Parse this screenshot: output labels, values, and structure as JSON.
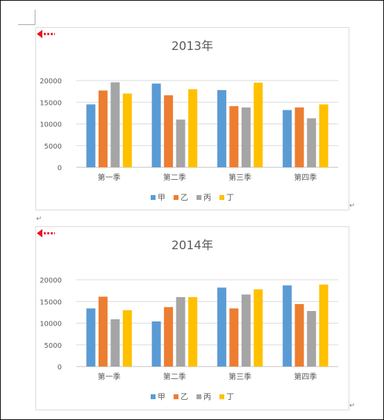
{
  "charts": [
    {
      "title": "2013年",
      "chart_data": {
        "type": "bar",
        "title": "2013年",
        "categories": [
          "第一季",
          "第二季",
          "第三季",
          "第四季"
        ],
        "ylim": [
          0,
          20000
        ],
        "yticks": [
          "0",
          "5000",
          "10000",
          "15000",
          "20000"
        ],
        "grid": true,
        "legend_position": "bottom",
        "series": [
          {
            "name": "甲",
            "color": "#5b9bd5",
            "values": [
              14500,
              19300,
              17800,
              13200
            ]
          },
          {
            "name": "乙",
            "color": "#ed7d31",
            "values": [
              17700,
              16600,
              14100,
              13800
            ]
          },
          {
            "name": "丙",
            "color": "#a5a5a5",
            "values": [
              19600,
              11000,
              13800,
              11300
            ]
          },
          {
            "name": "丁",
            "color": "#ffc000",
            "values": [
              17000,
              18000,
              19500,
              14500
            ]
          }
        ]
      }
    },
    {
      "title": "2014年",
      "chart_data": {
        "type": "bar",
        "title": "2014年",
        "categories": [
          "第一季",
          "第二季",
          "第三季",
          "第四季"
        ],
        "ylim": [
          0,
          20000
        ],
        "yticks": [
          "0",
          "5000",
          "10000",
          "15000",
          "20000"
        ],
        "grid": true,
        "legend_position": "bottom",
        "series": [
          {
            "name": "甲",
            "color": "#5b9bd5",
            "values": [
              13400,
              10400,
              18200,
              18700
            ]
          },
          {
            "name": "乙",
            "color": "#ed7d31",
            "values": [
              16100,
              13700,
              13400,
              14400
            ]
          },
          {
            "name": "丙",
            "color": "#a5a5a5",
            "values": [
              10900,
              16000,
              16600,
              12800
            ]
          },
          {
            "name": "丁",
            "color": "#ffc000",
            "values": [
              13000,
              16000,
              17800,
              18900
            ]
          }
        ]
      }
    }
  ],
  "page": {
    "paragraph_mark": "↵",
    "arrow_color": "#e81123"
  }
}
